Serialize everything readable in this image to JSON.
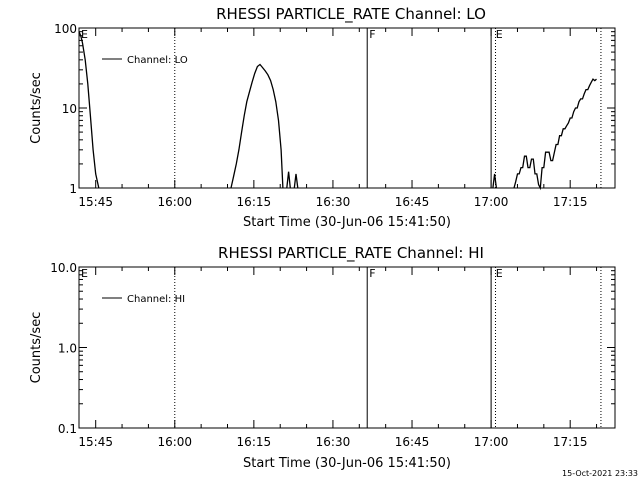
{
  "chart_data": [
    {
      "type": "line",
      "title": "RHESSI PARTICLE_RATE Channel: LO",
      "xlabel": "Start Time (30-Jun-06 15:41:50)",
      "ylabel": "Counts/sec",
      "y_scale": "log",
      "xlim": [
        "15:41:50",
        "17:23:30"
      ],
      "ylim": [
        1,
        100
      ],
      "x_ticks": [
        "15:45",
        "16:00",
        "16:15",
        "16:30",
        "16:45",
        "17:00",
        "17:15"
      ],
      "y_ticks": [
        "1",
        "10",
        "100"
      ],
      "legend": "top-left",
      "series": [
        {
          "name": "Channel: LO",
          "segments": [
            {
              "x": [
                "15:41:50",
                "15:42:10",
                "15:42:30",
                "15:43:00",
                "15:43:30",
                "15:44:00",
                "15:44:30",
                "15:45:00",
                "15:45:35"
              ],
              "y": [
                90,
                80,
                65,
                40,
                20,
                8,
                3,
                1.5,
                1
              ]
            },
            {
              "x": [
                "16:10:40",
                "16:11:10",
                "16:11:40",
                "16:12:10",
                "16:12:40",
                "16:13:10",
                "16:13:40",
                "16:14:10",
                "16:14:40",
                "16:15:10",
                "16:15:40",
                "16:16:10",
                "16:16:40",
                "16:17:10",
                "16:17:40",
                "16:18:10",
                "16:18:40",
                "16:19:10",
                "16:19:40",
                "16:20:10",
                "16:20:30"
              ],
              "y": [
                1,
                1.4,
                2,
                3,
                5,
                8,
                12,
                16,
                21,
                27,
                33,
                35,
                32,
                29,
                26,
                22,
                17,
                12,
                7,
                3,
                1
              ]
            },
            {
              "x": [
                "16:21:15",
                "16:21:35",
                "16:21:55"
              ],
              "y": [
                1,
                1.6,
                1
              ]
            },
            {
              "x": [
                "16:22:40",
                "16:23:00",
                "16:23:20"
              ],
              "y": [
                1,
                1.5,
                1
              ]
            },
            {
              "x": [
                "17:00:20",
                "17:00:40",
                "17:01:00"
              ],
              "y": [
                1,
                1.5,
                1
              ]
            },
            {
              "x": [
                "17:04:20",
                "17:04:40",
                "17:05:00",
                "17:05:20",
                "17:05:40",
                "17:06:00",
                "17:06:20",
                "17:06:40",
                "17:07:00",
                "17:07:20",
                "17:07:40",
                "17:08:00",
                "17:08:20",
                "17:08:40",
                "17:09:00",
                "17:09:20",
                "17:09:40",
                "17:10:00",
                "17:10:20",
                "17:10:40",
                "17:11:00",
                "17:11:20",
                "17:11:40",
                "17:12:00",
                "17:12:20",
                "17:12:40",
                "17:13:00",
                "17:13:20",
                "17:13:40",
                "17:14:00",
                "17:14:20",
                "17:14:40",
                "17:15:00",
                "17:15:20",
                "17:15:40",
                "17:16:00",
                "17:16:20",
                "17:16:40",
                "17:17:00",
                "17:17:20",
                "17:17:40",
                "17:18:00",
                "17:18:20",
                "17:18:40",
                "17:19:00",
                "17:19:20",
                "17:19:40",
                "17:20:00"
              ],
              "y": [
                1,
                1.2,
                1.5,
                1.5,
                1.8,
                1.8,
                2.5,
                2.5,
                1.8,
                1.8,
                2.3,
                2.3,
                1.5,
                1.5,
                1.1,
                1,
                1.8,
                1.8,
                2.8,
                2.8,
                2.8,
                2.2,
                2.2,
                2.8,
                3.5,
                3.5,
                4.5,
                4.5,
                5.5,
                5.5,
                6,
                6.5,
                7.5,
                7.5,
                9,
                10,
                10,
                12,
                13,
                13,
                15,
                17,
                17,
                19,
                21,
                23,
                22,
                23
              ]
            }
          ]
        }
      ],
      "flags": [
        {
          "label": "E",
          "time": "15:41:50"
        },
        {
          "label": "F",
          "time": "16:36:30"
        },
        {
          "label": "E",
          "time": "17:00:30"
        }
      ],
      "solid_lines": [
        "16:36:30",
        "17:00:00"
      ],
      "dotted_lines": [
        "16:00:00",
        "17:00:50",
        "17:20:50"
      ]
    },
    {
      "type": "line",
      "title": "RHESSI PARTICLE_RATE Channel: HI",
      "xlabel": "Start Time (30-Jun-06 15:41:50)",
      "ylabel": "Counts/sec",
      "y_scale": "log",
      "xlim": [
        "15:41:50",
        "17:23:30"
      ],
      "ylim": [
        0.1,
        10
      ],
      "x_ticks": [
        "15:45",
        "16:00",
        "16:15",
        "16:30",
        "16:45",
        "17:00",
        "17:15"
      ],
      "y_ticks": [
        "0.1",
        "1.0",
        "10.0"
      ],
      "legend": "top-left",
      "series": [
        {
          "name": "Channel: HI",
          "segments": []
        }
      ],
      "flags": [
        {
          "label": "E",
          "time": "15:41:50"
        },
        {
          "label": "F",
          "time": "16:36:30"
        },
        {
          "label": "E",
          "time": "17:00:30"
        }
      ],
      "solid_lines": [
        "16:36:30",
        "17:00:00"
      ],
      "dotted_lines": [
        "16:00:00",
        "17:00:50",
        "17:20:50"
      ]
    }
  ],
  "footer": {
    "timestamp": "15-Oct-2021 23:33"
  }
}
